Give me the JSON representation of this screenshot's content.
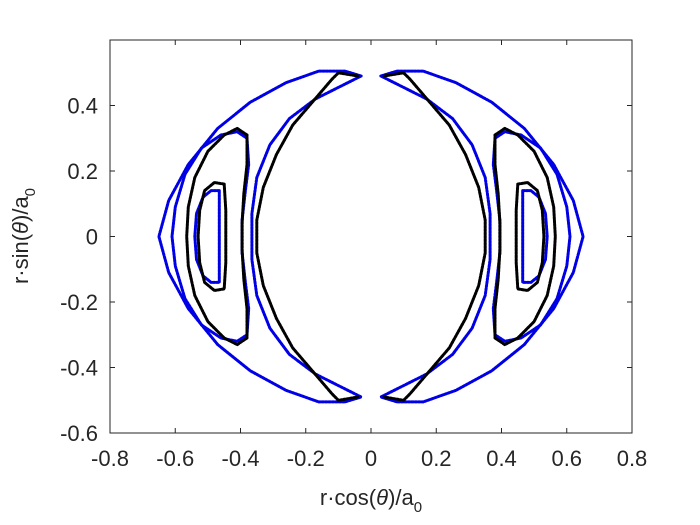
{
  "chart_data": {
    "type": "scatter",
    "title": "",
    "xlabel": {
      "prefix": "r·cos(",
      "theta": "θ",
      "suffix": ")/a",
      "subscript": "0"
    },
    "ylabel": {
      "prefix": "r·sin(",
      "theta": "θ",
      "suffix": ")/a",
      "subscript": "0"
    },
    "xlim": [
      -0.8,
      0.8
    ],
    "ylim": [
      -0.6,
      0.6
    ],
    "xticks": [
      -0.8,
      -0.6,
      -0.4,
      -0.2,
      0,
      0.2,
      0.4,
      0.6,
      0.8
    ],
    "yticks": [
      -0.6,
      -0.4,
      -0.2,
      0,
      0.2,
      0.4
    ],
    "xtick_labels": [
      "-0.8",
      "-0.6",
      "-0.4",
      "-0.2",
      "0",
      "0.2",
      "0.4",
      "0.6",
      "0.8"
    ],
    "ytick_labels": [
      "-0.6",
      "-0.4",
      "-0.2",
      "0",
      "0.2",
      "0.4"
    ],
    "grid": false,
    "legend": "none",
    "series": [
      {
        "color": "#0000e6",
        "values": [
          [
            -0.03,
            0.49
          ],
          [
            -0.08,
            0.505
          ],
          [
            -0.16,
            0.505
          ],
          [
            -0.26,
            0.47
          ],
          [
            -0.37,
            0.41
          ],
          [
            -0.47,
            0.33
          ],
          [
            -0.56,
            0.22
          ],
          [
            -0.62,
            0.11
          ],
          [
            -0.65,
            0.0
          ],
          [
            -0.62,
            -0.11
          ],
          [
            -0.56,
            -0.22
          ],
          [
            -0.47,
            -0.33
          ],
          [
            -0.37,
            -0.41
          ],
          [
            -0.26,
            -0.47
          ],
          [
            -0.16,
            -0.505
          ],
          [
            -0.08,
            -0.505
          ],
          [
            -0.03,
            -0.49
          ],
          [
            -0.09,
            -0.46
          ],
          [
            -0.17,
            -0.42
          ],
          [
            -0.25,
            -0.36
          ],
          [
            -0.31,
            -0.28
          ],
          [
            -0.35,
            -0.18
          ],
          [
            -0.365,
            -0.07
          ],
          [
            -0.365,
            0.07
          ],
          [
            -0.35,
            0.18
          ],
          [
            -0.31,
            0.28
          ],
          [
            -0.25,
            0.36
          ],
          [
            -0.17,
            0.42
          ],
          [
            -0.09,
            0.46
          ],
          [
            -0.03,
            0.49
          ]
        ]
      },
      {
        "color": "#0000e6",
        "values": [
          [
            -0.38,
            0.3
          ],
          [
            -0.41,
            0.32
          ],
          [
            -0.46,
            0.31
          ],
          [
            -0.52,
            0.27
          ],
          [
            -0.57,
            0.19
          ],
          [
            -0.6,
            0.09
          ],
          [
            -0.61,
            0.0
          ],
          [
            -0.6,
            -0.09
          ],
          [
            -0.57,
            -0.19
          ],
          [
            -0.52,
            -0.27
          ],
          [
            -0.46,
            -0.31
          ],
          [
            -0.41,
            -0.32
          ],
          [
            -0.38,
            -0.3
          ],
          [
            -0.375,
            -0.22
          ],
          [
            -0.385,
            -0.14
          ],
          [
            -0.395,
            -0.05
          ],
          [
            -0.395,
            0.05
          ],
          [
            -0.385,
            0.14
          ],
          [
            -0.375,
            0.22
          ],
          [
            -0.38,
            0.3
          ]
        ]
      },
      {
        "color": "#0000e6",
        "values": [
          [
            -0.465,
            0.14
          ],
          [
            -0.49,
            0.14
          ],
          [
            -0.515,
            0.12
          ],
          [
            -0.535,
            0.07
          ],
          [
            -0.54,
            0.0
          ],
          [
            -0.535,
            -0.07
          ],
          [
            -0.515,
            -0.12
          ],
          [
            -0.49,
            -0.14
          ],
          [
            -0.465,
            -0.14
          ],
          [
            -0.465,
            -0.07
          ],
          [
            -0.465,
            0.0
          ],
          [
            -0.465,
            0.07
          ],
          [
            -0.465,
            0.14
          ]
        ]
      },
      {
        "color": "#000000",
        "values": [
          [
            -0.04,
            0.49
          ],
          [
            -0.1,
            0.5
          ],
          [
            -0.12,
            0.48
          ],
          [
            -0.18,
            0.41
          ],
          [
            -0.24,
            0.34
          ],
          [
            -0.29,
            0.25
          ],
          [
            -0.33,
            0.15
          ],
          [
            -0.35,
            0.05
          ],
          [
            -0.35,
            -0.05
          ],
          [
            -0.33,
            -0.15
          ],
          [
            -0.29,
            -0.25
          ],
          [
            -0.24,
            -0.34
          ],
          [
            -0.18,
            -0.41
          ],
          [
            -0.12,
            -0.48
          ],
          [
            -0.1,
            -0.5
          ],
          [
            -0.04,
            -0.49
          ]
        ]
      },
      {
        "color": "#000000",
        "values": [
          [
            -0.38,
            0.31
          ],
          [
            -0.41,
            0.33
          ],
          [
            -0.45,
            0.31
          ],
          [
            -0.5,
            0.26
          ],
          [
            -0.54,
            0.18
          ],
          [
            -0.56,
            0.09
          ],
          [
            -0.565,
            0.0
          ],
          [
            -0.56,
            -0.09
          ],
          [
            -0.54,
            -0.18
          ],
          [
            -0.5,
            -0.26
          ],
          [
            -0.45,
            -0.31
          ],
          [
            -0.41,
            -0.33
          ],
          [
            -0.38,
            -0.31
          ],
          [
            -0.38,
            -0.22
          ],
          [
            -0.39,
            -0.13
          ],
          [
            -0.395,
            -0.04
          ],
          [
            -0.395,
            0.04
          ],
          [
            -0.39,
            0.13
          ],
          [
            -0.38,
            0.22
          ],
          [
            -0.38,
            0.31
          ]
        ]
      },
      {
        "color": "#000000",
        "values": [
          [
            -0.45,
            0.16
          ],
          [
            -0.48,
            0.165
          ],
          [
            -0.51,
            0.14
          ],
          [
            -0.525,
            0.08
          ],
          [
            -0.53,
            0.0
          ],
          [
            -0.525,
            -0.08
          ],
          [
            -0.51,
            -0.14
          ],
          [
            -0.48,
            -0.165
          ],
          [
            -0.45,
            -0.16
          ],
          [
            -0.445,
            -0.08
          ],
          [
            -0.445,
            0.0
          ],
          [
            -0.445,
            0.08
          ],
          [
            -0.45,
            0.16
          ]
        ]
      }
    ]
  }
}
